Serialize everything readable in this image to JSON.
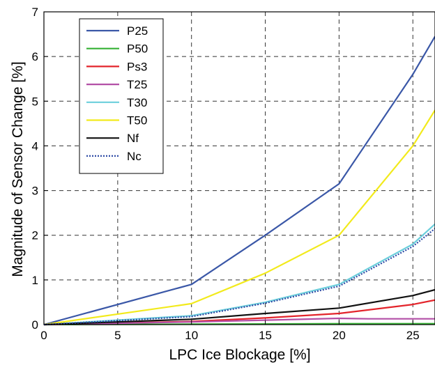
{
  "chart_data": {
    "type": "line",
    "xlabel": "LPC Ice Blockage [%]",
    "ylabel": "Magnitude of Sensor Change [%]",
    "xlim": [
      0,
      26.5
    ],
    "ylim": [
      0,
      7
    ],
    "xticks": [
      0,
      5,
      10,
      15,
      20,
      25
    ],
    "yticks": [
      0,
      1,
      2,
      3,
      4,
      5,
      6,
      7
    ],
    "grid": true,
    "legend_position": "top-left",
    "series": [
      {
        "name": "P25",
        "color": "#3a57a7",
        "style": "solid",
        "x": [
          0,
          10,
          15,
          20,
          25,
          26.5
        ],
        "y": [
          0,
          0.9,
          2.0,
          3.15,
          5.6,
          6.45
        ]
      },
      {
        "name": "P50",
        "color": "#35b034",
        "style": "solid",
        "x": [
          0,
          10,
          20,
          26.5
        ],
        "y": [
          0,
          0.01,
          0.02,
          0.02
        ]
      },
      {
        "name": "Ps3",
        "color": "#e3242b",
        "style": "solid",
        "x": [
          0,
          10,
          15,
          20,
          25,
          26.5
        ],
        "y": [
          0,
          0.07,
          0.15,
          0.25,
          0.45,
          0.55
        ]
      },
      {
        "name": "T25",
        "color": "#b34fa6",
        "style": "solid",
        "x": [
          0,
          10,
          15,
          20,
          22,
          26.5
        ],
        "y": [
          0,
          0.06,
          0.1,
          0.14,
          0.13,
          0.13
        ]
      },
      {
        "name": "T30",
        "color": "#6ccfdc",
        "style": "solid",
        "x": [
          0,
          10,
          15,
          20,
          25,
          26.5
        ],
        "y": [
          0,
          0.2,
          0.5,
          0.9,
          1.8,
          2.25
        ]
      },
      {
        "name": "T50",
        "color": "#f2ea1c",
        "style": "solid",
        "x": [
          0,
          10,
          15,
          20,
          25,
          26.5
        ],
        "y": [
          0,
          0.47,
          1.15,
          2.0,
          4.0,
          4.8
        ]
      },
      {
        "name": "Nf",
        "color": "#111111",
        "style": "solid",
        "x": [
          0,
          10,
          15,
          20,
          25,
          26.5
        ],
        "y": [
          0,
          0.12,
          0.25,
          0.37,
          0.65,
          0.78
        ]
      },
      {
        "name": "Nc",
        "color": "#2d4aa5",
        "style": "dotted",
        "x": [
          0,
          10,
          15,
          20,
          25,
          26.5
        ],
        "y": [
          0,
          0.18,
          0.48,
          0.86,
          1.75,
          2.15
        ]
      }
    ]
  }
}
